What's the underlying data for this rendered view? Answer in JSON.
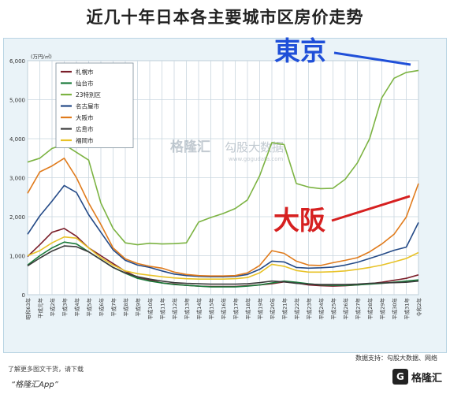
{
  "title": "近几十年日本各主要城市区房价走势",
  "footer": {
    "note": "了解更多图文干货，请下载",
    "app": "“格隆汇App”",
    "source": "数据支持：勾股大数据、网络",
    "logo_mark": "G",
    "logo_text": "格隆汇"
  },
  "watermark": {
    "brand": "格隆汇",
    "text": "勾股大数据",
    "url": "www.gogudata.com"
  },
  "annotations": [
    {
      "text": "東京",
      "color": "#1f4fd8"
    },
    {
      "text": "大阪",
      "color": "#d62020"
    }
  ],
  "chart_data": {
    "type": "line",
    "yunit": "(万円/㎡)",
    "ylim": [
      0,
      6000
    ],
    "yticks": [
      "0",
      "1,000",
      "2,000",
      "3,000",
      "4,000",
      "5,000",
      "6,000"
    ],
    "grid": true,
    "legend": "top-left",
    "x": [
      "昭和63年",
      "平成元年",
      "平成2年",
      "平成3年",
      "平成4年",
      "平成5年",
      "平成6年",
      "平成7年",
      "平成8年",
      "平成9年",
      "平成10年",
      "平成11年",
      "平成12年",
      "平成13年",
      "平成14年",
      "平成15年",
      "平成16年",
      "平成17年",
      "平成18年",
      "平成19年",
      "平成20年",
      "平成21年",
      "平成22年",
      "平成23年",
      "平成24年",
      "平成25年",
      "平成26年",
      "平成27年",
      "平成28年",
      "平成29年",
      "平成30年",
      "平成31年",
      "令和2年"
    ],
    "series": [
      {
        "name": "札幌市",
        "color": "#7b1f2a",
        "values": [
          980,
          1280,
          1600,
          1700,
          1500,
          1200,
          1000,
          800,
          600,
          450,
          380,
          300,
          270,
          240,
          220,
          210,
          210,
          210,
          230,
          250,
          280,
          330,
          300,
          250,
          230,
          220,
          230,
          250,
          280,
          320,
          370,
          420,
          510
        ]
      },
      {
        "name": "仙台市",
        "color": "#1a7a3a",
        "values": [
          760,
          1000,
          1200,
          1350,
          1300,
          1100,
          900,
          700,
          550,
          420,
          350,
          300,
          260,
          240,
          220,
          200,
          200,
          200,
          220,
          250,
          300,
          350,
          320,
          280,
          250,
          240,
          240,
          250,
          270,
          290,
          320,
          350,
          380
        ]
      },
      {
        "name": "23特別区",
        "color": "#7cb342",
        "values": [
          3400,
          3500,
          3750,
          3850,
          3650,
          3450,
          2350,
          1700,
          1330,
          1280,
          1320,
          1300,
          1310,
          1330,
          1860,
          1980,
          2080,
          2210,
          2430,
          3050,
          3900,
          3850,
          2850,
          2760,
          2720,
          2730,
          2960,
          3380,
          4000,
          5050,
          5550,
          5700,
          5750
        ]
      },
      {
        "name": "名古屋市",
        "color": "#244a87",
        "values": [
          1550,
          2020,
          2400,
          2800,
          2620,
          2050,
          1600,
          1150,
          880,
          760,
          700,
          610,
          530,
          490,
          470,
          460,
          460,
          470,
          520,
          650,
          860,
          840,
          700,
          680,
          690,
          710,
          760,
          830,
          930,
          1030,
          1140,
          1220,
          1850
        ]
      },
      {
        "name": "大阪市",
        "color": "#e07b1c",
        "values": [
          2600,
          3150,
          3300,
          3500,
          3000,
          2350,
          1800,
          1200,
          920,
          800,
          730,
          680,
          580,
          520,
          490,
          480,
          480,
          490,
          560,
          750,
          1130,
          1060,
          860,
          760,
          750,
          820,
          880,
          950,
          1100,
          1300,
          1550,
          1990,
          2850
        ]
      },
      {
        "name": "広島市",
        "color": "#3c3c3c",
        "values": [
          740,
          940,
          1120,
          1250,
          1230,
          1100,
          900,
          700,
          560,
          460,
          400,
          350,
          310,
          290,
          280,
          270,
          270,
          270,
          280,
          310,
          350,
          330,
          290,
          270,
          260,
          260,
          260,
          270,
          290,
          300,
          310,
          320,
          350
        ]
      },
      {
        "name": "福岡市",
        "color": "#e8c227",
        "values": [
          1000,
          1130,
          1330,
          1480,
          1450,
          1200,
          950,
          760,
          610,
          540,
          500,
          460,
          430,
          410,
          400,
          400,
          400,
          410,
          440,
          560,
          780,
          730,
          620,
          580,
          580,
          590,
          610,
          650,
          700,
          760,
          840,
          930,
          1080
        ]
      }
    ]
  }
}
